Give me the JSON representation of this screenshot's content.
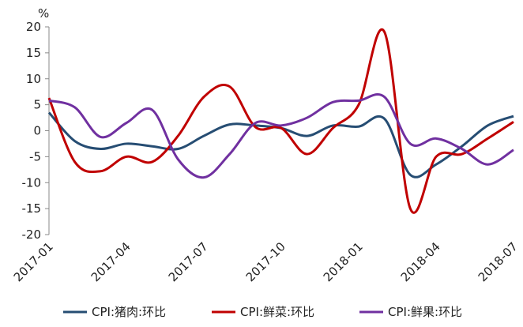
{
  "chart_data": {
    "type": "line",
    "y_unit": "%",
    "categories": [
      "2017-01",
      null,
      null,
      "2017-04",
      null,
      null,
      "2017-07",
      null,
      null,
      "2017-10",
      null,
      null,
      "2018-01",
      null,
      null,
      "2018-04",
      null,
      null,
      "2018-07"
    ],
    "series": [
      {
        "name": "CPI:猪肉:环比",
        "color": "#264d73",
        "values": [
          3.5,
          -2,
          -3.5,
          -2.5,
          -3,
          -3.5,
          -1,
          1.2,
          1,
          0.5,
          -1,
          1,
          0.8,
          2.3,
          -8.5,
          -6.5,
          -3,
          1,
          2.8
        ]
      },
      {
        "name": "CPI:鲜菜:环比",
        "color": "#c00000",
        "values": [
          6.3,
          -6,
          -7.8,
          -5,
          -6,
          -1,
          6.5,
          8.5,
          0.7,
          0.5,
          -4.5,
          0.5,
          5,
          19,
          -15,
          -5,
          -4.5,
          -1.5,
          1.7
        ]
      },
      {
        "name": "CPI:鲜果:环比",
        "color": "#7030a0",
        "values": [
          5.8,
          4.5,
          -1.2,
          1.5,
          4,
          -5.5,
          -9,
          -4.5,
          1.5,
          1,
          2.5,
          5.5,
          5.8,
          6.5,
          -2.5,
          -1.5,
          -3.5,
          -6.5,
          -3.7
        ]
      }
    ],
    "ylim": [
      -20,
      20
    ],
    "yticks": [
      -20,
      -15,
      -10,
      -5,
      0,
      5,
      10,
      15,
      20
    ],
    "legend": "bottom"
  }
}
